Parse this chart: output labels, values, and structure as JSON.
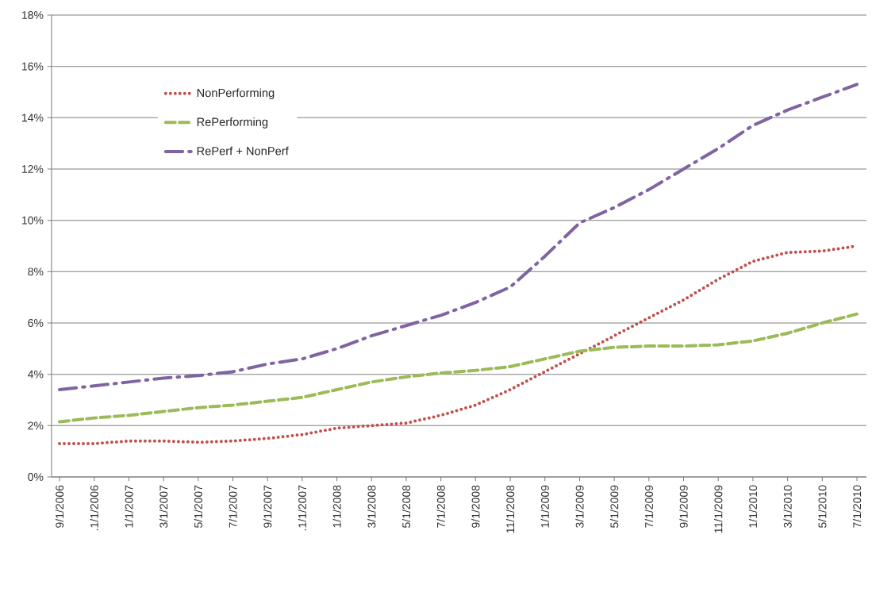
{
  "chart_data": {
    "type": "line",
    "categories": [
      "9/1/2006",
      ".1/1/2006",
      "1/1/2007",
      "3/1/2007",
      "5/1/2007",
      "7/1/2007",
      "9/1/2007",
      ".1/1/2007",
      "1/1/2008",
      "3/1/2008",
      "5/1/2008",
      "7/1/2008",
      "9/1/2008",
      "11/1/2008",
      "1/1/2009",
      "3/1/2009",
      "5/1/2009",
      "7/1/2009",
      "9/1/2009",
      "11/1/2009",
      "1/1/2010",
      "3/1/2010",
      "5/1/2010",
      "7/1/2010"
    ],
    "series": [
      {
        "name": "NonPerforming",
        "color": "#c0504d",
        "line_style": "dotted",
        "values": [
          1.3,
          1.3,
          1.4,
          1.4,
          1.35,
          1.4,
          1.5,
          1.65,
          1.9,
          2.0,
          2.1,
          2.4,
          2.8,
          3.4,
          4.1,
          4.8,
          5.5,
          6.2,
          6.9,
          7.7,
          8.4,
          8.75,
          8.8,
          9.0
        ]
      },
      {
        "name": "RePerforming",
        "color": "#9bbb59",
        "line_style": "dashed",
        "values": [
          2.15,
          2.3,
          2.4,
          2.55,
          2.7,
          2.8,
          2.95,
          3.1,
          3.4,
          3.7,
          3.9,
          4.05,
          4.15,
          4.3,
          4.6,
          4.9,
          5.05,
          5.1,
          5.1,
          5.15,
          5.3,
          5.6,
          6.0,
          6.35
        ]
      },
      {
        "name": "RePerf + NonPerf",
        "color": "#8064a2",
        "line_style": "dashdot",
        "values": [
          3.4,
          3.55,
          3.7,
          3.85,
          3.95,
          4.1,
          4.4,
          4.6,
          5.0,
          5.5,
          5.9,
          6.3,
          6.8,
          7.4,
          8.6,
          9.9,
          10.5,
          11.2,
          12.0,
          12.8,
          13.7,
          14.3,
          14.8,
          15.3
        ]
      }
    ],
    "ylim": [
      0,
      18
    ],
    "yticks": [
      {
        "value": 0,
        "label": "0%"
      },
      {
        "value": 2,
        "label": "2%"
      },
      {
        "value": 4,
        "label": "4%"
      },
      {
        "value": 6,
        "label": "6%"
      },
      {
        "value": 8,
        "label": "8%"
      },
      {
        "value": 10,
        "label": "10%"
      },
      {
        "value": 12,
        "label": "12%"
      },
      {
        "value": 14,
        "label": "14%"
      },
      {
        "value": 16,
        "label": "16%"
      },
      {
        "value": 18,
        "label": "18%"
      }
    ],
    "grid": "y",
    "legend": "top left",
    "marker": "none"
  }
}
